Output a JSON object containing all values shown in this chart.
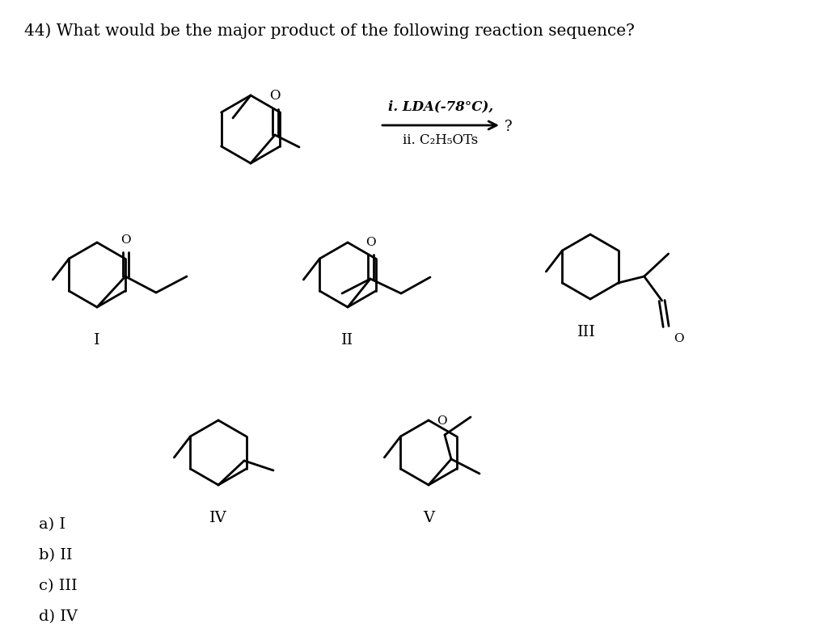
{
  "title": "44) What would be the major product of the following reaction sequence?",
  "title_fontsize": 14.5,
  "background_color": "#ffffff",
  "text_color": "#000000",
  "answer_options": [
    "a) I",
    "b) II",
    "c) III",
    "d) IV"
  ],
  "reaction_line1": "i. LDA(-78°C),",
  "reaction_line2": "ii. C₂H₅OTs",
  "lw": 2.0
}
